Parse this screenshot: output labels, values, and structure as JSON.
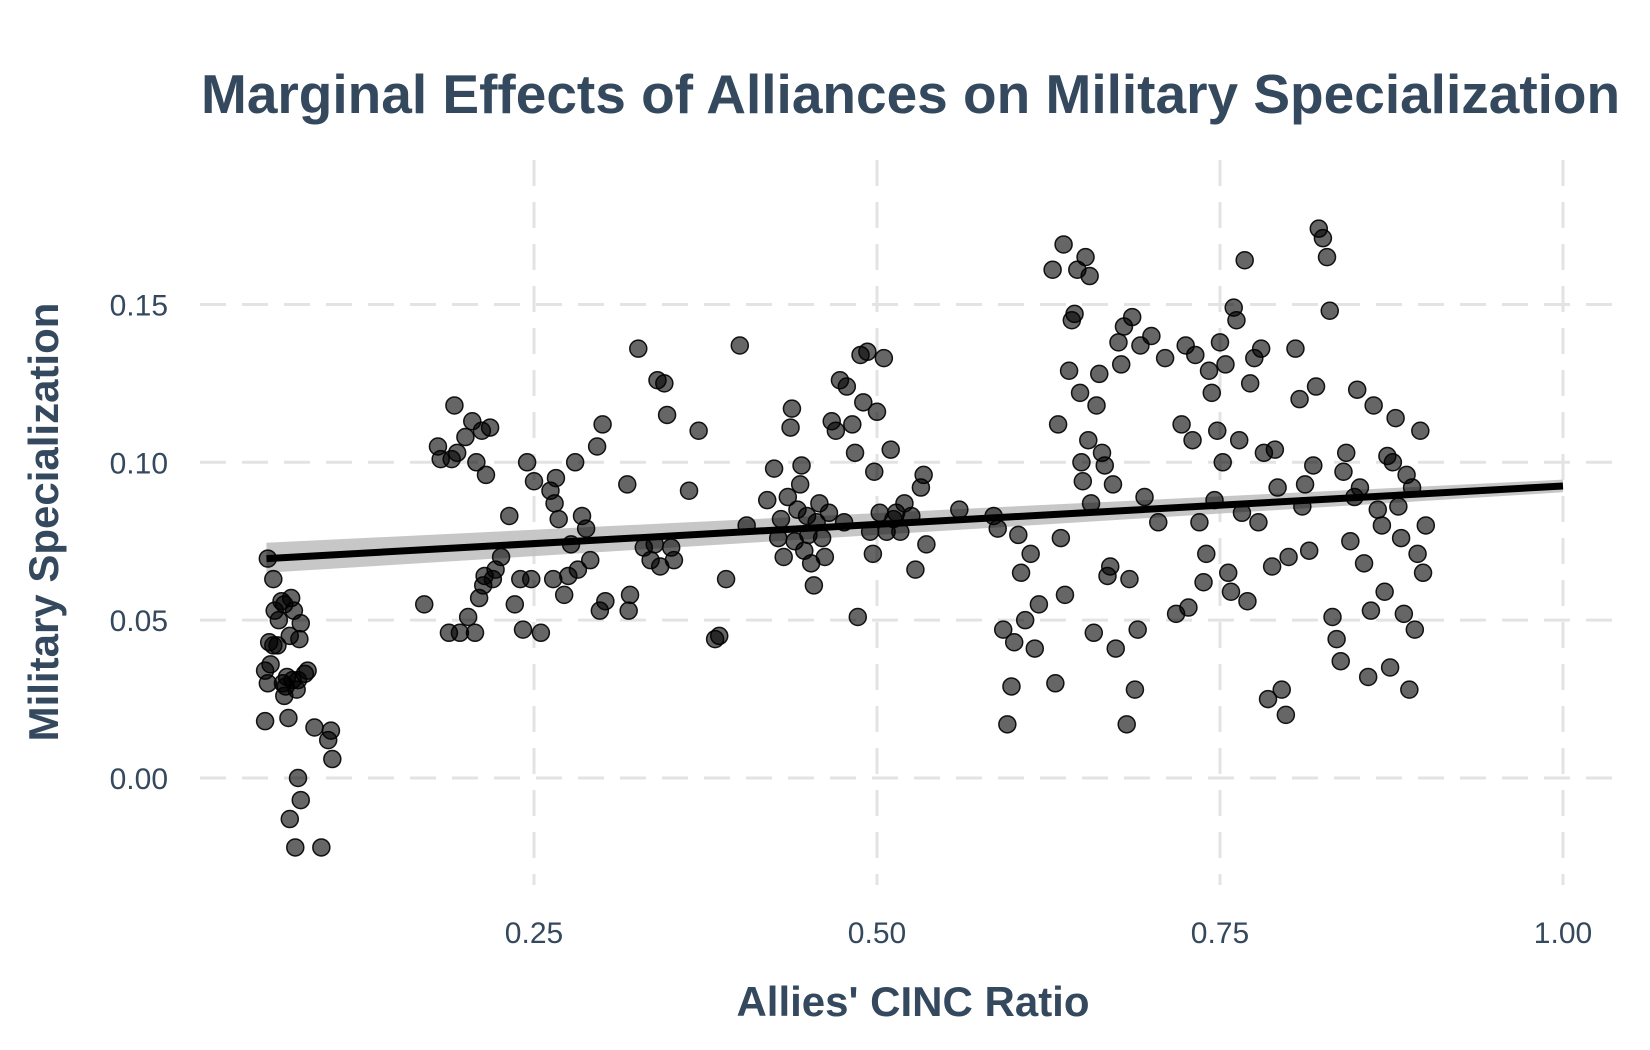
{
  "chart_data": {
    "type": "scatter",
    "title": "Marginal Effects of Alliances on Military Specialization",
    "xlabel": "Allies' CINC Ratio",
    "ylabel": "Military Specialization",
    "xlim": [
      0.0,
      1.07
    ],
    "ylim": [
      -0.033,
      0.19
    ],
    "x_ticks": [
      0.25,
      0.5,
      0.75,
      1.0
    ],
    "x_tick_labels": [
      "0.25",
      "0.50",
      "0.75",
      "1.00"
    ],
    "y_ticks": [
      0.0,
      0.05,
      0.1,
      0.15
    ],
    "y_tick_labels": [
      "0.00",
      "0.05",
      "0.10",
      "0.15"
    ],
    "grid": true,
    "legend": "none",
    "point_color": "#000000",
    "line_color": "#000000",
    "band_color": "#bdbdbd",
    "text_color": "#34495e",
    "fit": {
      "x": [
        0.055,
        1.0
      ],
      "y": [
        0.0695,
        0.0925
      ],
      "ci_lower": [
        0.065,
        0.0905
      ],
      "ci_upper": [
        0.0745,
        0.0945
      ]
    },
    "points": [
      [
        0.056,
        0.0695
      ],
      [
        0.054,
        0.034
      ],
      [
        0.056,
        0.03
      ],
      [
        0.058,
        0.036
      ],
      [
        0.057,
        0.043
      ],
      [
        0.06,
        0.063
      ],
      [
        0.061,
        0.053
      ],
      [
        0.063,
        0.042
      ],
      [
        0.064,
        0.05
      ],
      [
        0.066,
        0.056
      ],
      [
        0.067,
        0.03
      ],
      [
        0.068,
        0.026
      ],
      [
        0.069,
        0.029
      ],
      [
        0.07,
        0.032
      ],
      [
        0.071,
        0.019
      ],
      [
        0.072,
        0.045
      ],
      [
        0.073,
        0.057
      ],
      [
        0.075,
        0.053
      ],
      [
        0.077,
        0.028
      ],
      [
        0.078,
        0.031
      ],
      [
        0.079,
        0.044
      ],
      [
        0.08,
        0.049
      ],
      [
        0.083,
        0.033
      ],
      [
        0.085,
        0.034
      ],
      [
        0.054,
        0.018
      ],
      [
        0.072,
        -0.013
      ],
      [
        0.076,
        -0.022
      ],
      [
        0.078,
        0.0
      ],
      [
        0.08,
        -0.007
      ],
      [
        0.09,
        0.016
      ],
      [
        0.095,
        -0.022
      ],
      [
        0.1,
        0.012
      ],
      [
        0.102,
        0.015
      ],
      [
        0.103,
        0.006
      ],
      [
        0.06,
        0.042
      ],
      [
        0.068,
        0.055
      ],
      [
        0.074,
        0.031
      ],
      [
        0.17,
        0.055
      ],
      [
        0.18,
        0.105
      ],
      [
        0.182,
        0.101
      ],
      [
        0.188,
        0.046
      ],
      [
        0.19,
        0.101
      ],
      [
        0.192,
        0.118
      ],
      [
        0.194,
        0.103
      ],
      [
        0.196,
        0.046
      ],
      [
        0.2,
        0.108
      ],
      [
        0.202,
        0.051
      ],
      [
        0.205,
        0.113
      ],
      [
        0.207,
        0.046
      ],
      [
        0.208,
        0.1
      ],
      [
        0.21,
        0.057
      ],
      [
        0.212,
        0.11
      ],
      [
        0.213,
        0.061
      ],
      [
        0.214,
        0.064
      ],
      [
        0.215,
        0.096
      ],
      [
        0.218,
        0.111
      ],
      [
        0.22,
        0.063
      ],
      [
        0.222,
        0.066
      ],
      [
        0.226,
        0.07
      ],
      [
        0.232,
        0.083
      ],
      [
        0.236,
        0.055
      ],
      [
        0.24,
        0.063
      ],
      [
        0.242,
        0.047
      ],
      [
        0.245,
        0.1
      ],
      [
        0.248,
        0.063
      ],
      [
        0.25,
        0.094
      ],
      [
        0.255,
        0.046
      ],
      [
        0.262,
        0.091
      ],
      [
        0.264,
        0.063
      ],
      [
        0.265,
        0.087
      ],
      [
        0.266,
        0.095
      ],
      [
        0.268,
        0.082
      ],
      [
        0.272,
        0.058
      ],
      [
        0.275,
        0.064
      ],
      [
        0.277,
        0.074
      ],
      [
        0.28,
        0.1
      ],
      [
        0.282,
        0.066
      ],
      [
        0.285,
        0.083
      ],
      [
        0.288,
        0.079
      ],
      [
        0.291,
        0.069
      ],
      [
        0.296,
        0.105
      ],
      [
        0.298,
        0.053
      ],
      [
        0.3,
        0.112
      ],
      [
        0.302,
        0.056
      ],
      [
        0.318,
        0.093
      ],
      [
        0.319,
        0.053
      ],
      [
        0.32,
        0.058
      ],
      [
        0.326,
        0.136
      ],
      [
        0.33,
        0.073
      ],
      [
        0.335,
        0.069
      ],
      [
        0.338,
        0.074
      ],
      [
        0.34,
        0.126
      ],
      [
        0.342,
        0.067
      ],
      [
        0.345,
        0.125
      ],
      [
        0.347,
        0.115
      ],
      [
        0.35,
        0.073
      ],
      [
        0.352,
        0.069
      ],
      [
        0.363,
        0.091
      ],
      [
        0.37,
        0.11
      ],
      [
        0.382,
        0.044
      ],
      [
        0.385,
        0.045
      ],
      [
        0.39,
        0.063
      ],
      [
        0.4,
        0.137
      ],
      [
        0.405,
        0.08
      ],
      [
        0.42,
        0.088
      ],
      [
        0.425,
        0.098
      ],
      [
        0.428,
        0.076
      ],
      [
        0.43,
        0.082
      ],
      [
        0.432,
        0.07
      ],
      [
        0.435,
        0.089
      ],
      [
        0.437,
        0.111
      ],
      [
        0.438,
        0.117
      ],
      [
        0.44,
        0.075
      ],
      [
        0.442,
        0.085
      ],
      [
        0.444,
        0.093
      ],
      [
        0.445,
        0.099
      ],
      [
        0.447,
        0.072
      ],
      [
        0.449,
        0.083
      ],
      [
        0.45,
        0.077
      ],
      [
        0.452,
        0.068
      ],
      [
        0.454,
        0.061
      ],
      [
        0.456,
        0.081
      ],
      [
        0.458,
        0.087
      ],
      [
        0.46,
        0.076
      ],
      [
        0.462,
        0.07
      ],
      [
        0.465,
        0.084
      ],
      [
        0.467,
        0.113
      ],
      [
        0.47,
        0.11
      ],
      [
        0.473,
        0.126
      ],
      [
        0.476,
        0.081
      ],
      [
        0.478,
        0.124
      ],
      [
        0.482,
        0.112
      ],
      [
        0.484,
        0.103
      ],
      [
        0.486,
        0.051
      ],
      [
        0.488,
        0.134
      ],
      [
        0.49,
        0.119
      ],
      [
        0.493,
        0.135
      ],
      [
        0.495,
        0.078
      ],
      [
        0.497,
        0.071
      ],
      [
        0.498,
        0.097
      ],
      [
        0.5,
        0.116
      ],
      [
        0.502,
        0.084
      ],
      [
        0.505,
        0.133
      ],
      [
        0.507,
        0.078
      ],
      [
        0.51,
        0.104
      ],
      [
        0.512,
        0.082
      ],
      [
        0.514,
        0.084
      ],
      [
        0.517,
        0.078
      ],
      [
        0.52,
        0.087
      ],
      [
        0.525,
        0.083
      ],
      [
        0.528,
        0.066
      ],
      [
        0.532,
        0.092
      ],
      [
        0.534,
        0.096
      ],
      [
        0.536,
        0.074
      ],
      [
        0.56,
        0.085
      ],
      [
        0.585,
        0.083
      ],
      [
        0.588,
        0.079
      ],
      [
        0.592,
        0.047
      ],
      [
        0.595,
        0.017
      ],
      [
        0.598,
        0.029
      ],
      [
        0.6,
        0.043
      ],
      [
        0.603,
        0.077
      ],
      [
        0.605,
        0.065
      ],
      [
        0.608,
        0.05
      ],
      [
        0.612,
        0.071
      ],
      [
        0.615,
        0.041
      ],
      [
        0.618,
        0.055
      ],
      [
        0.628,
        0.161
      ],
      [
        0.63,
        0.03
      ],
      [
        0.632,
        0.112
      ],
      [
        0.634,
        0.076
      ],
      [
        0.636,
        0.169
      ],
      [
        0.637,
        0.058
      ],
      [
        0.64,
        0.129
      ],
      [
        0.642,
        0.145
      ],
      [
        0.644,
        0.147
      ],
      [
        0.646,
        0.161
      ],
      [
        0.648,
        0.122
      ],
      [
        0.649,
        0.1
      ],
      [
        0.65,
        0.094
      ],
      [
        0.652,
        0.165
      ],
      [
        0.654,
        0.107
      ],
      [
        0.655,
        0.159
      ],
      [
        0.656,
        0.087
      ],
      [
        0.658,
        0.046
      ],
      [
        0.66,
        0.118
      ],
      [
        0.662,
        0.128
      ],
      [
        0.664,
        0.103
      ],
      [
        0.666,
        0.099
      ],
      [
        0.668,
        0.064
      ],
      [
        0.67,
        0.067
      ],
      [
        0.672,
        0.093
      ],
      [
        0.674,
        0.041
      ],
      [
        0.676,
        0.138
      ],
      [
        0.678,
        0.131
      ],
      [
        0.68,
        0.143
      ],
      [
        0.682,
        0.017
      ],
      [
        0.684,
        0.063
      ],
      [
        0.686,
        0.146
      ],
      [
        0.688,
        0.028
      ],
      [
        0.69,
        0.047
      ],
      [
        0.692,
        0.137
      ],
      [
        0.695,
        0.089
      ],
      [
        0.7,
        0.14
      ],
      [
        0.705,
        0.081
      ],
      [
        0.71,
        0.133
      ],
      [
        0.718,
        0.052
      ],
      [
        0.722,
        0.112
      ],
      [
        0.725,
        0.137
      ],
      [
        0.727,
        0.054
      ],
      [
        0.73,
        0.107
      ],
      [
        0.732,
        0.134
      ],
      [
        0.735,
        0.081
      ],
      [
        0.738,
        0.062
      ],
      [
        0.74,
        0.071
      ],
      [
        0.742,
        0.129
      ],
      [
        0.744,
        0.122
      ],
      [
        0.746,
        0.088
      ],
      [
        0.748,
        0.11
      ],
      [
        0.75,
        0.138
      ],
      [
        0.752,
        0.1
      ],
      [
        0.754,
        0.131
      ],
      [
        0.756,
        0.065
      ],
      [
        0.758,
        0.059
      ],
      [
        0.76,
        0.149
      ],
      [
        0.762,
        0.145
      ],
      [
        0.764,
        0.107
      ],
      [
        0.766,
        0.084
      ],
      [
        0.768,
        0.164
      ],
      [
        0.77,
        0.056
      ],
      [
        0.772,
        0.125
      ],
      [
        0.775,
        0.133
      ],
      [
        0.778,
        0.081
      ],
      [
        0.78,
        0.136
      ],
      [
        0.782,
        0.103
      ],
      [
        0.785,
        0.025
      ],
      [
        0.788,
        0.067
      ],
      [
        0.79,
        0.104
      ],
      [
        0.792,
        0.092
      ],
      [
        0.795,
        0.028
      ],
      [
        0.798,
        0.02
      ],
      [
        0.8,
        0.07
      ],
      [
        0.805,
        0.136
      ],
      [
        0.808,
        0.12
      ],
      [
        0.81,
        0.086
      ],
      [
        0.812,
        0.093
      ],
      [
        0.815,
        0.072
      ],
      [
        0.818,
        0.099
      ],
      [
        0.82,
        0.124
      ],
      [
        0.822,
        0.174
      ],
      [
        0.825,
        0.171
      ],
      [
        0.828,
        0.165
      ],
      [
        0.83,
        0.148
      ],
      [
        0.832,
        0.051
      ],
      [
        0.835,
        0.044
      ],
      [
        0.838,
        0.037
      ],
      [
        0.84,
        0.097
      ],
      [
        0.842,
        0.103
      ],
      [
        0.845,
        0.075
      ],
      [
        0.848,
        0.089
      ],
      [
        0.85,
        0.123
      ],
      [
        0.852,
        0.092
      ],
      [
        0.855,
        0.068
      ],
      [
        0.858,
        0.032
      ],
      [
        0.86,
        0.053
      ],
      [
        0.862,
        0.118
      ],
      [
        0.865,
        0.085
      ],
      [
        0.868,
        0.08
      ],
      [
        0.87,
        0.059
      ],
      [
        0.872,
        0.102
      ],
      [
        0.874,
        0.035
      ],
      [
        0.876,
        0.1
      ],
      [
        0.878,
        0.114
      ],
      [
        0.88,
        0.086
      ],
      [
        0.882,
        0.076
      ],
      [
        0.884,
        0.052
      ],
      [
        0.886,
        0.096
      ],
      [
        0.888,
        0.028
      ],
      [
        0.89,
        0.092
      ],
      [
        0.892,
        0.047
      ],
      [
        0.894,
        0.071
      ],
      [
        0.896,
        0.11
      ],
      [
        0.898,
        0.065
      ],
      [
        0.9,
        0.08
      ]
    ]
  }
}
